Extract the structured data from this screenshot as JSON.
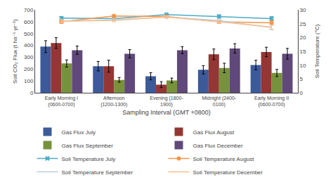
{
  "chart_data": {
    "type": "bar",
    "xlabel": "Sampling Interval (GMT +0800)",
    "ylabel": "Soil CO₂ Flux (t ha⁻¹ yr⁻¹)",
    "y2label": "Soil Temperature (°C)",
    "categories": [
      "Early Morning I\n(0600-0700)",
      "Afternoon\n(1200-1300)",
      "Evening (1800-\n1900)",
      "Midnight (2400-\n0100)",
      "Early Morning II\n(0600-0700)"
    ],
    "ylim": [
      0,
      700
    ],
    "yticks": [
      0,
      100,
      200,
      300,
      400,
      500,
      600,
      700
    ],
    "y2lim": [
      0,
      30
    ],
    "y2ticks": [
      0,
      5,
      10,
      15,
      20,
      25,
      30
    ],
    "grid": false,
    "legend": "bottom",
    "series": [
      {
        "name": "Gas Flux July",
        "type": "bar",
        "color": "#3c5a9a",
        "values": [
          390,
          225,
          140,
          195,
          235
        ],
        "errors": [
          50,
          40,
          30,
          35,
          40
        ]
      },
      {
        "name": "Gas Flux August",
        "type": "bar",
        "color": "#943634",
        "values": [
          420,
          225,
          70,
          325,
          345
        ],
        "errors": [
          45,
          50,
          25,
          45,
          40
        ]
      },
      {
        "name": "Gas Flux September",
        "type": "bar",
        "color": "#76923c",
        "values": [
          248,
          110,
          105,
          210,
          168
        ],
        "errors": [
          30,
          20,
          20,
          40,
          30
        ]
      },
      {
        "name": "Gas Flux December",
        "type": "bar",
        "color": "#60497a",
        "values": [
          360,
          330,
          360,
          375,
          330
        ],
        "errors": [
          35,
          35,
          30,
          40,
          45
        ]
      },
      {
        "name": "Soil Temperature July",
        "type": "line",
        "axis": "y2",
        "color": "#4bacc6",
        "marker": "x",
        "values": [
          27.0,
          26.8,
          28.3,
          27.6,
          26.8
        ],
        "errors": [
          0.6,
          0.5,
          0.4,
          0.6,
          0.8
        ]
      },
      {
        "name": "Soil Temperature August",
        "type": "line",
        "axis": "y2",
        "color": "#f79646",
        "marker": "circle",
        "values": [
          25.7,
          27.8,
          27.6,
          25.7,
          25.3
        ],
        "errors": [
          0.6,
          0.5,
          0.4,
          0.6,
          0.8
        ]
      },
      {
        "name": "Soil Temperature September",
        "type": "line",
        "axis": "y2",
        "color": "#b8cce4",
        "marker": "none",
        "values": [
          25.9,
          26.4,
          27.4,
          26.1,
          23.6
        ],
        "errors": [
          0.6,
          0.5,
          0.4,
          0.6,
          0.8
        ]
      },
      {
        "name": "Soil Temperature December",
        "type": "line",
        "axis": "y2",
        "color": "#fabf8f",
        "marker": "none",
        "values": [
          25.9,
          26.2,
          27.4,
          25.7,
          23.8
        ],
        "errors": [
          0.6,
          0.5,
          0.4,
          0.6,
          0.8
        ]
      }
    ]
  }
}
